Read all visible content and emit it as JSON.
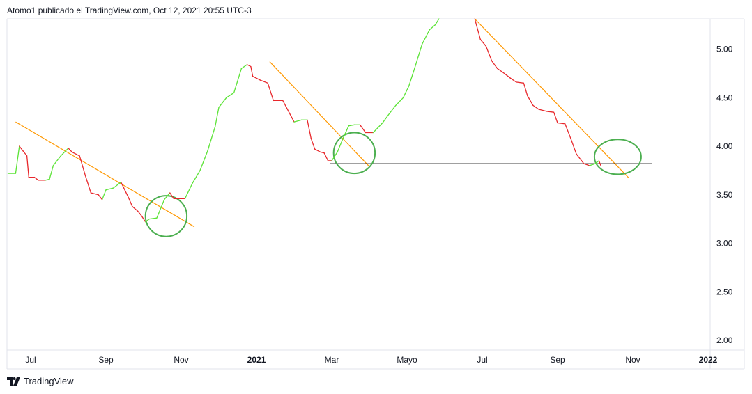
{
  "header": {
    "attribution": "Atomo1 publicado el TradingView.com, Oct 12, 2021 20:55 UTC-3"
  },
  "footer": {
    "brand": "TradingView"
  },
  "colors": {
    "up": "#5be336",
    "down": "#e8272b",
    "trendline": "#ff9800",
    "support": "#000000",
    "circle": "#4caf50",
    "grid_border": "#e0e3eb"
  },
  "chart_data": {
    "type": "line",
    "title": "",
    "xlabel": "",
    "ylabel": "",
    "ylim": [
      1.95,
      5.35
    ],
    "y_ticks": [
      "2.00",
      "2.50",
      "3.00",
      "3.50",
      "4.00",
      "4.50",
      "5.00"
    ],
    "x_ticks": [
      {
        "label": "Jul",
        "month": 0,
        "bold": false
      },
      {
        "label": "Sep",
        "month": 2,
        "bold": false
      },
      {
        "label": "Nov",
        "month": 4,
        "bold": false
      },
      {
        "label": "2021",
        "month": 6,
        "bold": true
      },
      {
        "label": "Mar",
        "month": 8,
        "bold": false
      },
      {
        "label": "Mayo",
        "month": 10,
        "bold": false
      },
      {
        "label": "Jul",
        "month": 12,
        "bold": false
      },
      {
        "label": "Sep",
        "month": 14,
        "bold": false
      },
      {
        "label": "Nov",
        "month": 16,
        "bold": false
      },
      {
        "label": "2022",
        "month": 18,
        "bold": true
      }
    ],
    "series": [
      {
        "color_mode": "up-down",
        "points": [
          [
            -0.6,
            3.72
          ],
          [
            -0.4,
            3.72
          ],
          [
            -0.3,
            4.0
          ],
          [
            -0.2,
            3.95
          ],
          [
            -0.1,
            3.9
          ],
          [
            -0.05,
            3.68
          ],
          [
            0.1,
            3.68
          ],
          [
            0.2,
            3.65
          ],
          [
            0.4,
            3.65
          ],
          [
            0.5,
            3.66
          ],
          [
            0.6,
            3.8
          ],
          [
            0.8,
            3.9
          ],
          [
            1.0,
            3.98
          ],
          [
            1.1,
            3.94
          ],
          [
            1.3,
            3.9
          ],
          [
            1.45,
            3.7
          ],
          [
            1.6,
            3.52
          ],
          [
            1.8,
            3.5
          ],
          [
            1.9,
            3.45
          ],
          [
            2.0,
            3.55
          ],
          [
            2.2,
            3.57
          ],
          [
            2.4,
            3.63
          ],
          [
            2.5,
            3.55
          ],
          [
            2.6,
            3.47
          ],
          [
            2.7,
            3.38
          ],
          [
            2.85,
            3.33
          ],
          [
            2.95,
            3.28
          ],
          [
            3.05,
            3.22
          ],
          [
            3.15,
            3.25
          ],
          [
            3.35,
            3.26
          ],
          [
            3.55,
            3.45
          ],
          [
            3.7,
            3.52
          ],
          [
            3.8,
            3.46
          ],
          [
            4.1,
            3.46
          ],
          [
            4.3,
            3.62
          ],
          [
            4.5,
            3.75
          ],
          [
            4.7,
            3.95
          ],
          [
            4.9,
            4.2
          ],
          [
            5.0,
            4.4
          ],
          [
            5.2,
            4.5
          ],
          [
            5.4,
            4.55
          ],
          [
            5.6,
            4.8
          ],
          [
            5.75,
            4.84
          ],
          [
            5.85,
            4.82
          ],
          [
            5.9,
            4.72
          ],
          [
            6.1,
            4.68
          ],
          [
            6.3,
            4.65
          ],
          [
            6.45,
            4.47
          ],
          [
            6.7,
            4.47
          ],
          [
            6.85,
            4.36
          ],
          [
            7.0,
            4.25
          ],
          [
            7.2,
            4.27
          ],
          [
            7.35,
            4.27
          ],
          [
            7.45,
            4.08
          ],
          [
            7.55,
            3.97
          ],
          [
            7.7,
            3.94
          ],
          [
            7.8,
            3.93
          ],
          [
            7.9,
            3.85
          ],
          [
            8.0,
            3.85
          ],
          [
            8.15,
            3.94
          ],
          [
            8.3,
            4.08
          ],
          [
            8.45,
            4.21
          ],
          [
            8.6,
            4.22
          ],
          [
            8.75,
            4.22
          ],
          [
            8.9,
            4.14
          ],
          [
            9.1,
            4.14
          ],
          [
            9.35,
            4.24
          ],
          [
            9.5,
            4.32
          ],
          [
            9.7,
            4.42
          ],
          [
            9.9,
            4.5
          ],
          [
            10.05,
            4.62
          ],
          [
            10.2,
            4.8
          ],
          [
            10.4,
            5.05
          ],
          [
            10.6,
            5.2
          ],
          [
            10.75,
            5.25
          ],
          [
            10.85,
            5.35
          ]
        ]
      },
      {
        "color_mode": "up-down",
        "points": [
          [
            11.8,
            5.35
          ],
          [
            11.95,
            5.1
          ],
          [
            12.1,
            5.03
          ],
          [
            12.25,
            4.88
          ],
          [
            12.4,
            4.8
          ],
          [
            12.55,
            4.76
          ],
          [
            12.75,
            4.7
          ],
          [
            12.9,
            4.66
          ],
          [
            13.1,
            4.65
          ],
          [
            13.2,
            4.52
          ],
          [
            13.35,
            4.42
          ],
          [
            13.5,
            4.38
          ],
          [
            13.7,
            4.36
          ],
          [
            13.9,
            4.35
          ],
          [
            14.0,
            4.24
          ],
          [
            14.2,
            4.23
          ],
          [
            14.35,
            4.08
          ],
          [
            14.5,
            3.92
          ],
          [
            14.7,
            3.82
          ],
          [
            14.85,
            3.8
          ],
          [
            15.0,
            3.82
          ],
          [
            15.1,
            3.85
          ],
          [
            15.15,
            3.8
          ]
        ]
      }
    ],
    "annotations": {
      "trendlines": [
        {
          "from": [
            -0.4,
            4.25
          ],
          "to": [
            4.35,
            3.17
          ]
        },
        {
          "from": [
            6.35,
            4.87
          ],
          "to": [
            9.0,
            3.79
          ]
        },
        {
          "from": [
            11.8,
            5.4
          ],
          "to": [
            15.9,
            3.67
          ]
        }
      ],
      "support_line": {
        "y": 3.82,
        "from": 7.95,
        "to": 16.5
      },
      "circles": [
        {
          "cx": 3.6,
          "cy": 3.28,
          "rx": 0.55,
          "ry": 0.21
        },
        {
          "cx": 8.6,
          "cy": 3.93,
          "rx": 0.55,
          "ry": 0.21
        },
        {
          "cx": 15.6,
          "cy": 3.89,
          "rx": 0.62,
          "ry": 0.18
        }
      ]
    }
  }
}
